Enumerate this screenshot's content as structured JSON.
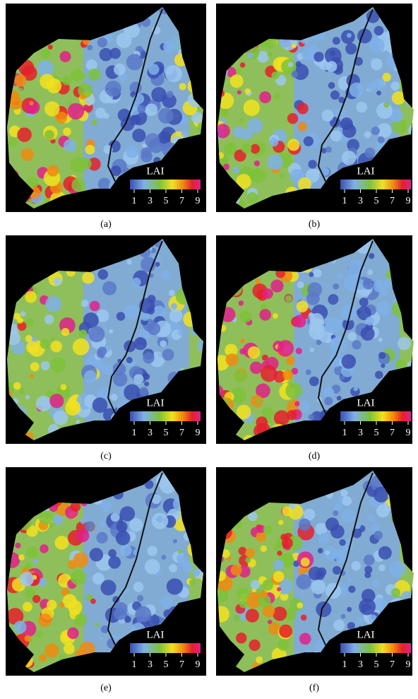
{
  "panels": [
    {
      "label": "(a)",
      "legend": {
        "title": "LAI",
        "ticks": [
          1,
          3,
          5,
          7,
          9
        ]
      }
    },
    {
      "label": "(b)",
      "legend": {
        "title": "LAI",
        "ticks": [
          1,
          3,
          5,
          7,
          9
        ]
      }
    },
    {
      "label": "(c)",
      "legend": {
        "title": "LAI",
        "ticks": [
          1,
          3,
          5,
          7,
          9
        ]
      }
    },
    {
      "label": "(d)",
      "legend": {
        "title": "LAI",
        "ticks": [
          1,
          3,
          5,
          7,
          9
        ]
      }
    },
    {
      "label": "(e)",
      "legend": {
        "title": "LAI",
        "ticks": [
          1,
          3,
          5,
          7,
          9
        ]
      }
    },
    {
      "label": "(f)",
      "legend": {
        "title": "LAI",
        "ticks": [
          1,
          3,
          5,
          7,
          9
        ]
      }
    }
  ]
}
